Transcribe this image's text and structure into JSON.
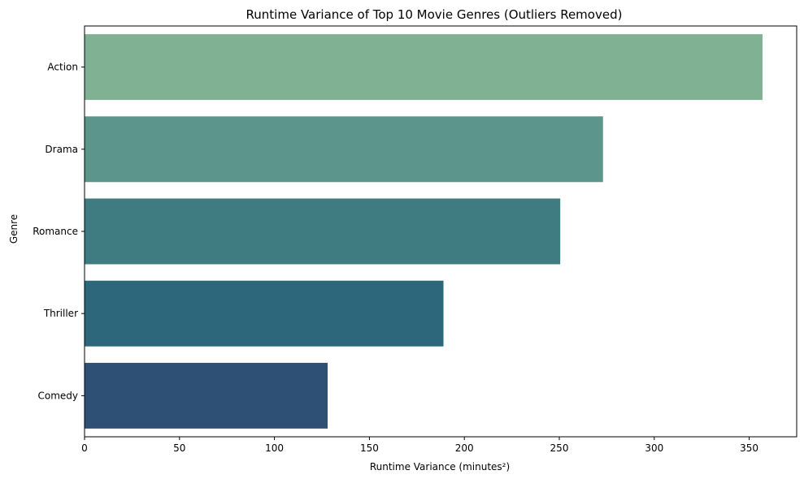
{
  "chart_data": {
    "type": "bar",
    "orientation": "horizontal",
    "title": "Runtime Variance of Top 10 Movie Genres (Outliers Removed)",
    "xlabel": "Runtime Variance (minutes²)",
    "ylabel": "Genre",
    "categories": [
      "Action",
      "Drama",
      "Romance",
      "Thriller",
      "Comedy"
    ],
    "values": [
      357,
      273,
      250.5,
      189,
      128
    ],
    "colors": [
      "#80b192",
      "#5b958b",
      "#3f7c82",
      "#2c677b",
      "#2f5075"
    ],
    "xlim": [
      0,
      375
    ],
    "xticks": [
      0,
      50,
      100,
      150,
      200,
      250,
      300,
      350
    ],
    "grid": false,
    "legend": "none"
  }
}
